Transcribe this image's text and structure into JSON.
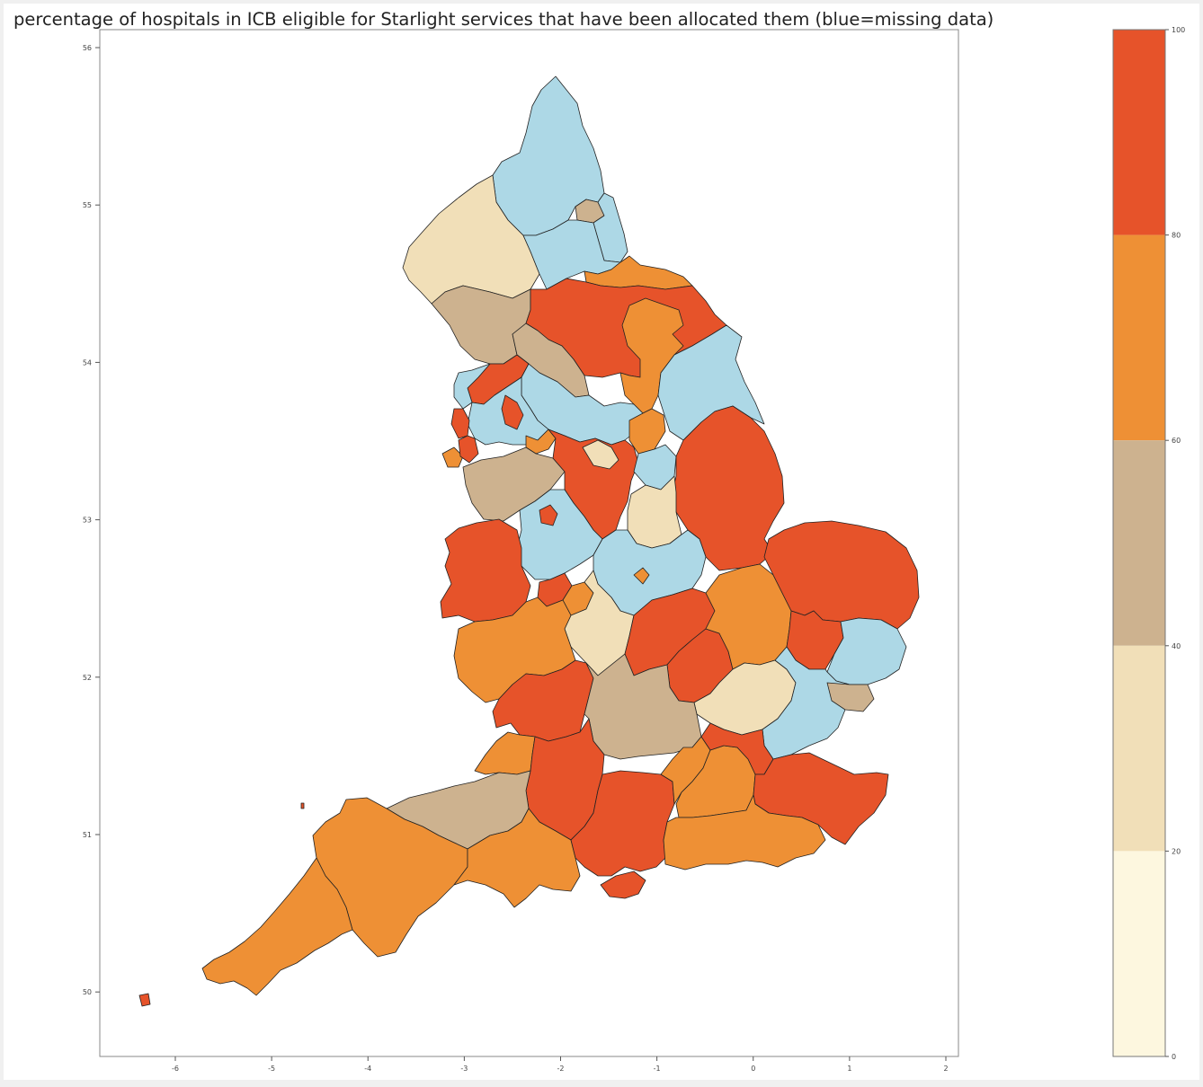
{
  "title": "percentage of hospitals in ICB eligible for Starlight services that have been allocated them (blue=missing data)",
  "map": {
    "x_ticks": [
      "-6",
      "-5",
      "-4",
      "-3",
      "-2",
      "-1",
      "0",
      "1",
      "2"
    ],
    "y_ticks": [
      "56",
      "55",
      "54",
      "53",
      "52",
      "51",
      "50"
    ],
    "missing_color": "#add8e6",
    "border_color": "#222222"
  },
  "colorbar": {
    "ticks": [
      "100",
      "80",
      "60",
      "40",
      "20",
      "0"
    ],
    "colors": [
      "#e6532a",
      "#ee9035",
      "#cdb28f",
      "#f1dfb8",
      "#fdf7df"
    ]
  }
}
